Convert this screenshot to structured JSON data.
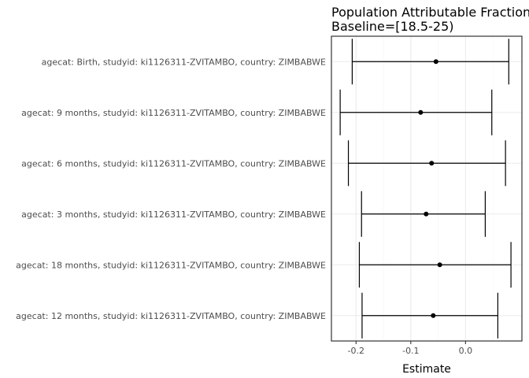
{
  "chart_data": {
    "type": "forest",
    "title_lines": [
      "Population Attributable Fraction",
      "Baseline=[18.5-25)"
    ],
    "xlabel": "Estimate",
    "xlim": [
      -0.245,
      0.103
    ],
    "xticks": [
      -0.2,
      -0.1,
      0.0
    ],
    "xtick_labels": [
      "-0.2",
      "-0.1",
      "0.0"
    ],
    "grid": true,
    "colors": {
      "panel_border": "#333333",
      "grid_major": "#ebebeb",
      "grid_minor": "#f4f4f4",
      "marks": "#000000"
    },
    "categories": [
      "agecat: Birth, studyid: ki1126311-ZVITAMBO, country: ZIMBABWE",
      "agecat: 9 months, studyid: ki1126311-ZVITAMBO, country: ZIMBABWE",
      "agecat: 6 months, studyid: ki1126311-ZVITAMBO, country: ZIMBABWE",
      "agecat: 3 months, studyid: ki1126311-ZVITAMBO, country: ZIMBABWE",
      "agecat: 18 months, studyid: ki1126311-ZVITAMBO, country: ZIMBABWE",
      "agecat: 12 months, studyid: ki1126311-ZVITAMBO, country: ZIMBABWE"
    ],
    "estimates": [
      -0.054,
      -0.082,
      -0.062,
      -0.072,
      -0.047,
      -0.059
    ],
    "lower": [
      -0.207,
      -0.229,
      -0.214,
      -0.19,
      -0.194,
      -0.189
    ],
    "upper": [
      0.079,
      0.048,
      0.073,
      0.036,
      0.083,
      0.059
    ]
  }
}
